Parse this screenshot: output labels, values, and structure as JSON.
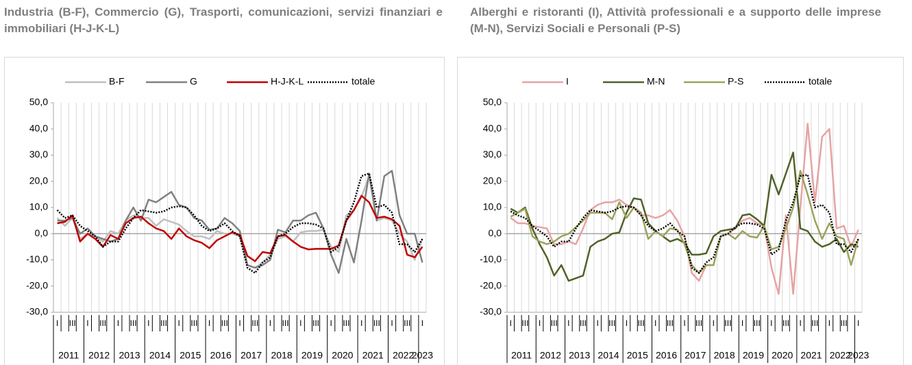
{
  "chart_data": [
    {
      "type": "line",
      "title": "Industria (B-F), Commercio (G), Trasporti, comunicazioni, servizi finanziari e immobiliari (H-J-K-L)",
      "categories": [
        "I",
        null,
        "III",
        null,
        "I",
        null,
        "III",
        null,
        "I",
        null,
        "III",
        null,
        "I",
        null,
        "III",
        null,
        "I",
        null,
        "III",
        null,
        "I",
        null,
        "III",
        null,
        "I",
        null,
        "III",
        null,
        "I",
        null,
        "III",
        null,
        "I",
        null,
        "III",
        null,
        "I",
        null,
        "III",
        null,
        "I",
        null,
        "III",
        null,
        "I",
        null,
        "III",
        null,
        "I"
      ],
      "years": [
        "2011",
        "2012",
        "2013",
        "2014",
        "2015",
        "2016",
        "2017",
        "2018",
        "2019",
        "2020",
        "2021",
        "2022",
        "2023"
      ],
      "ylim": [
        -30,
        50
      ],
      "yticks": [
        {
          "value": 50,
          "label": "50,0"
        },
        {
          "value": 40,
          "label": "40,0"
        },
        {
          "value": 30,
          "label": "30,0"
        },
        {
          "value": 20,
          "label": "20,0"
        },
        {
          "value": 10,
          "label": "10,0"
        },
        {
          "value": 0,
          "label": "0,0"
        },
        {
          "value": -10,
          "label": "-10,0"
        },
        {
          "value": -20,
          "label": "-20,0"
        },
        {
          "value": -30,
          "label": "-30,0"
        }
      ],
      "series": [
        {
          "name": "B-F",
          "color": "#bfbfbf",
          "values": [
            6,
            3,
            6,
            -2,
            0,
            -1,
            -3,
            1,
            0,
            5,
            7,
            6,
            6,
            3,
            5.5,
            4.5,
            3.5,
            1,
            -1,
            -1,
            -2,
            1,
            0,
            0,
            -1,
            -12,
            -13,
            -11,
            -8,
            -2,
            -1,
            -3,
            0.5,
            1,
            1,
            1.5,
            -5,
            -7,
            7,
            9,
            14,
            22,
            5,
            6,
            5,
            0,
            -3,
            -10,
            -2
          ]
        },
        {
          "name": "G",
          "color": "#808080",
          "values": [
            5,
            5,
            6,
            0,
            2,
            -1,
            -2,
            -3,
            -2,
            5,
            10,
            5,
            13,
            12,
            14,
            16,
            11,
            10,
            6,
            5,
            1.5,
            2,
            6,
            4,
            1,
            -12,
            -13,
            -12,
            -10,
            1.5,
            0.5,
            5,
            5,
            7,
            8,
            2,
            -8,
            -15,
            -2,
            -11,
            5,
            23,
            5,
            22,
            24,
            7,
            0,
            0,
            -11
          ]
        },
        {
          "name": "H-J-K-L",
          "color": "#c00000",
          "values": [
            4,
            4.5,
            7,
            -3,
            0,
            -2,
            -5,
            -0.5,
            -2,
            4,
            6,
            6.5,
            4,
            2,
            1,
            -2,
            2,
            -1,
            -2.5,
            -3.5,
            -5.5,
            -2.5,
            -1,
            0.5,
            -0.5,
            -8.5,
            -10.5,
            -7,
            -7.5,
            -1,
            -0.5,
            -3,
            -5,
            -6,
            -5.8,
            -5.8,
            -5.8,
            -4.5,
            5,
            9,
            14.5,
            12,
            6,
            6.5,
            5.5,
            3,
            -8,
            -9,
            -5
          ]
        },
        {
          "name": "totale",
          "color": "#000000",
          "dash": "dotted",
          "values": [
            9,
            6,
            7,
            3,
            1,
            -1,
            -5,
            -3,
            -3,
            2,
            6,
            9,
            8.5,
            8,
            8.5,
            10,
            10.5,
            10,
            7,
            3,
            1,
            2,
            4,
            1,
            -1,
            -13,
            -15,
            -11,
            -9,
            -1,
            0,
            2.5,
            4,
            4,
            3.5,
            2,
            -7,
            -5,
            5,
            12,
            22,
            23,
            10,
            11,
            8,
            -4,
            -4,
            -7,
            -2
          ]
        }
      ]
    },
    {
      "type": "line",
      "title": "Alberghi e ristoranti (I), Attività professionali e a supporto delle imprese (M-N), Servizi Sociali e Personali (P-S)",
      "categories": [
        "I",
        null,
        "III",
        null,
        "I",
        null,
        "III",
        null,
        "I",
        null,
        "III",
        null,
        "I",
        null,
        "III",
        null,
        "I",
        null,
        "III",
        null,
        "I",
        null,
        "III",
        null,
        "I",
        null,
        "III",
        null,
        "I",
        null,
        "III",
        null,
        "I",
        null,
        "III",
        null,
        "I",
        null,
        "III",
        null,
        "I",
        null,
        "III",
        null,
        "I",
        null,
        "III",
        null,
        "I"
      ],
      "years": [
        "2011",
        "2012",
        "2013",
        "2014",
        "2015",
        "2016",
        "2017",
        "2018",
        "2019",
        "2020",
        "2021",
        "2022",
        "2023"
      ],
      "ylim": [
        -30,
        50
      ],
      "yticks": [
        {
          "value": 50,
          "label": "50,0"
        },
        {
          "value": 40,
          "label": "40,0"
        },
        {
          "value": 30,
          "label": "30,0"
        },
        {
          "value": 20,
          "label": "20,0"
        },
        {
          "value": 10,
          "label": "10,0"
        },
        {
          "value": 0,
          "label": "0,0"
        },
        {
          "value": -10,
          "label": "-10,0"
        },
        {
          "value": -20,
          "label": "-20,0"
        },
        {
          "value": -30,
          "label": "-30,0"
        }
      ],
      "series": [
        {
          "name": "I",
          "color": "#e6a3a3",
          "values": [
            6,
            4,
            4,
            3,
            2.5,
            2,
            -4,
            -4,
            -3,
            -4,
            2,
            9,
            11,
            12,
            12,
            13,
            11,
            10,
            7,
            7,
            6,
            7,
            9,
            5,
            -1,
            -15,
            -18,
            -12,
            -12,
            -1,
            0,
            2,
            5,
            6,
            4,
            3,
            -13,
            -23,
            7,
            -23,
            10,
            42,
            12,
            37,
            40,
            2,
            3,
            -5,
            1.5
          ]
        },
        {
          "name": "M-N",
          "color": "#4f6228",
          "values": [
            9.5,
            8,
            10,
            2,
            -4,
            -9,
            -16,
            -12,
            -18,
            -17,
            -16,
            -5,
            -3,
            -2,
            0,
            0.5,
            8,
            13.5,
            13,
            4,
            1,
            -1,
            -3,
            -2,
            -3.5,
            -8,
            -8,
            -7.5,
            -1,
            1,
            1.5,
            2,
            7,
            7.5,
            5.5,
            3,
            22.5,
            15,
            23,
            31,
            2,
            1,
            -3,
            -5,
            -4,
            -2,
            -7,
            -4,
            -5
          ]
        },
        {
          "name": "P-S",
          "color": "#9ca35c",
          "values": [
            6.5,
            8,
            9.5,
            -1,
            -3,
            -4,
            -3,
            -1,
            0,
            2.5,
            5,
            8,
            8,
            8,
            5.5,
            12,
            6,
            10,
            8,
            -2,
            1,
            -1,
            2,
            1.5,
            -4,
            -12,
            -15,
            -12,
            -12,
            -1,
            0,
            -2,
            1,
            -1,
            -1.5,
            3,
            -6,
            -5,
            2,
            10,
            24,
            15,
            5,
            -2,
            4,
            -1,
            -2,
            -12,
            -2
          ]
        },
        {
          "name": "totale",
          "color": "#000000",
          "dash": "dotted",
          "values": [
            8.5,
            7,
            6,
            3,
            1,
            -1,
            -5,
            -3,
            -3,
            2,
            6,
            9,
            8.5,
            8,
            8.5,
            10,
            10.5,
            10,
            7,
            3,
            1,
            2,
            4,
            1,
            -1,
            -13,
            -15,
            -11,
            -9,
            -1,
            0,
            2.5,
            4,
            4,
            3.5,
            2,
            -8,
            -6,
            5,
            12,
            22,
            22.5,
            10,
            11,
            8,
            -4,
            -4,
            -7,
            -2
          ]
        }
      ]
    }
  ]
}
